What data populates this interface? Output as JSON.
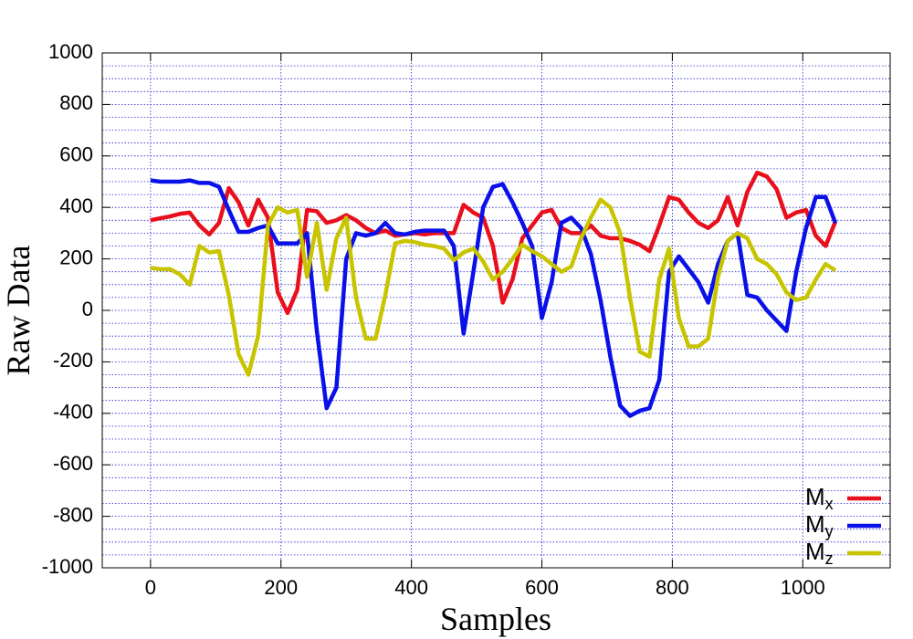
{
  "chart_data": {
    "type": "line",
    "x_label": "Samples",
    "y_label": "Raw Data",
    "x": [
      0,
      15,
      30,
      45,
      60,
      75,
      90,
      105,
      120,
      135,
      150,
      165,
      180,
      195,
      210,
      225,
      240,
      255,
      270,
      285,
      300,
      315,
      330,
      345,
      360,
      375,
      390,
      405,
      420,
      435,
      450,
      465,
      480,
      495,
      510,
      525,
      540,
      555,
      570,
      585,
      600,
      615,
      630,
      645,
      660,
      675,
      690,
      705,
      720,
      735,
      750,
      765,
      780,
      795,
      810,
      825,
      840,
      855,
      870,
      885,
      900,
      915,
      930,
      945,
      960,
      975,
      990,
      1005,
      1020,
      1035,
      1050
    ],
    "series": [
      {
        "name": "Mx",
        "color": "#e8101c",
        "values": [
          350,
          358,
          365,
          375,
          380,
          330,
          295,
          340,
          475,
          420,
          330,
          430,
          360,
          70,
          -10,
          80,
          390,
          385,
          340,
          350,
          370,
          350,
          320,
          300,
          310,
          290,
          295,
          300,
          295,
          300,
          300,
          300,
          410,
          380,
          360,
          250,
          30,
          120,
          280,
          330,
          380,
          390,
          320,
          300,
          300,
          330,
          290,
          280,
          280,
          270,
          255,
          230,
          330,
          440,
          430,
          380,
          340,
          320,
          350,
          440,
          330,
          460,
          535,
          520,
          470,
          360,
          380,
          390,
          290,
          250,
          345
        ]
      },
      {
        "name": "My",
        "color": "#0a10e8",
        "values": [
          505,
          500,
          500,
          500,
          505,
          495,
          495,
          480,
          390,
          305,
          305,
          320,
          330,
          260,
          260,
          260,
          300,
          -80,
          -380,
          -300,
          200,
          300,
          290,
          300,
          340,
          300,
          295,
          305,
          310,
          310,
          310,
          250,
          -90,
          150,
          400,
          480,
          490,
          420,
          340,
          250,
          -30,
          110,
          340,
          360,
          320,
          220,
          40,
          -180,
          -370,
          -410,
          -390,
          -380,
          -270,
          150,
          210,
          160,
          110,
          30,
          180,
          270,
          300,
          60,
          50,
          0,
          -40,
          -80,
          150,
          320,
          440,
          440,
          340
        ]
      },
      {
        "name": "Mz",
        "color": "#c8c400",
        "values": [
          165,
          160,
          160,
          140,
          100,
          250,
          225,
          230,
          60,
          -170,
          -250,
          -100,
          330,
          400,
          380,
          390,
          130,
          340,
          80,
          280,
          360,
          50,
          -110,
          -110,
          60,
          260,
          270,
          265,
          255,
          250,
          240,
          195,
          225,
          240,
          190,
          120,
          150,
          200,
          255,
          230,
          210,
          180,
          150,
          170,
          280,
          360,
          430,
          400,
          300,
          50,
          -160,
          -180,
          120,
          240,
          -30,
          -140,
          -140,
          -110,
          130,
          270,
          300,
          280,
          200,
          180,
          140,
          70,
          40,
          50,
          120,
          180,
          155
        ]
      }
    ],
    "xlim": [
      -74,
      1134
    ],
    "ylim": [
      -1000,
      1000
    ],
    "xticks": [
      0,
      200,
      400,
      600,
      800,
      1000
    ],
    "yticks": [
      -1000,
      -800,
      -600,
      -400,
      -200,
      0,
      200,
      400,
      600,
      800,
      1000
    ],
    "y_minor_grid": [
      -950,
      -900,
      -850,
      -750,
      -700,
      -650,
      -550,
      -500,
      -450,
      -350,
      -300,
      -250,
      -150,
      -100,
      -50,
      50,
      100,
      150,
      250,
      300,
      350,
      450,
      500,
      550,
      650,
      700,
      750,
      850,
      900,
      950
    ],
    "grid": true,
    "legend": "bottom-right"
  }
}
